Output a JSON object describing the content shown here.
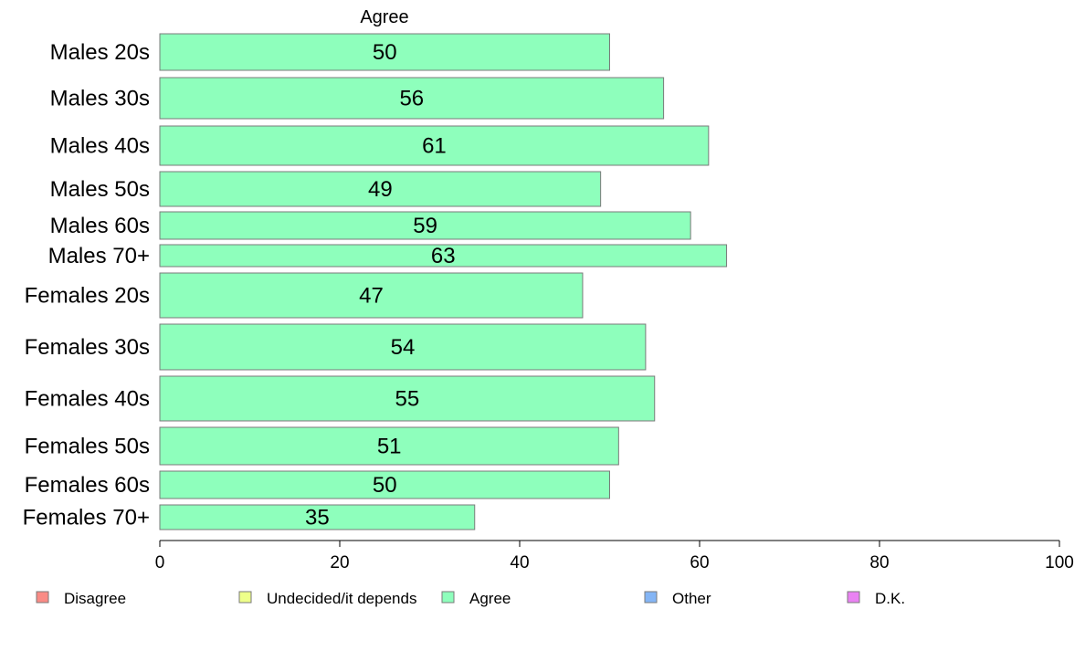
{
  "chart_data": {
    "type": "bar",
    "orientation": "horizontal",
    "stacked": true,
    "column_label": "Agree",
    "categories": [
      "Males 20s",
      "Males 30s",
      "Males 40s",
      "Males 50s",
      "Males 60s",
      "Males 70+",
      "Females 20s",
      "Females 30s",
      "Females 40s",
      "Females 50s",
      "Females 60s",
      "Females 70+"
    ],
    "series": [
      {
        "name": "Agree",
        "color": "#8effbc",
        "values": [
          50,
          56,
          61,
          49,
          59,
          63,
          47,
          54,
          55,
          51,
          50,
          35
        ]
      }
    ],
    "xlim": [
      0,
      100
    ],
    "xticks": [
      0,
      20,
      40,
      60,
      80,
      100
    ],
    "grid": false,
    "legend": {
      "placement": "bottom",
      "items": [
        {
          "label": "Disagree",
          "color": "#f98b85"
        },
        {
          "label": "Undecided/it depends",
          "color": "#eeff8a"
        },
        {
          "label": "Agree",
          "color": "#8effbc"
        },
        {
          "label": "Other",
          "color": "#84b5f5"
        },
        {
          "label": "D.K.",
          "color": "#e982f2"
        }
      ]
    }
  }
}
